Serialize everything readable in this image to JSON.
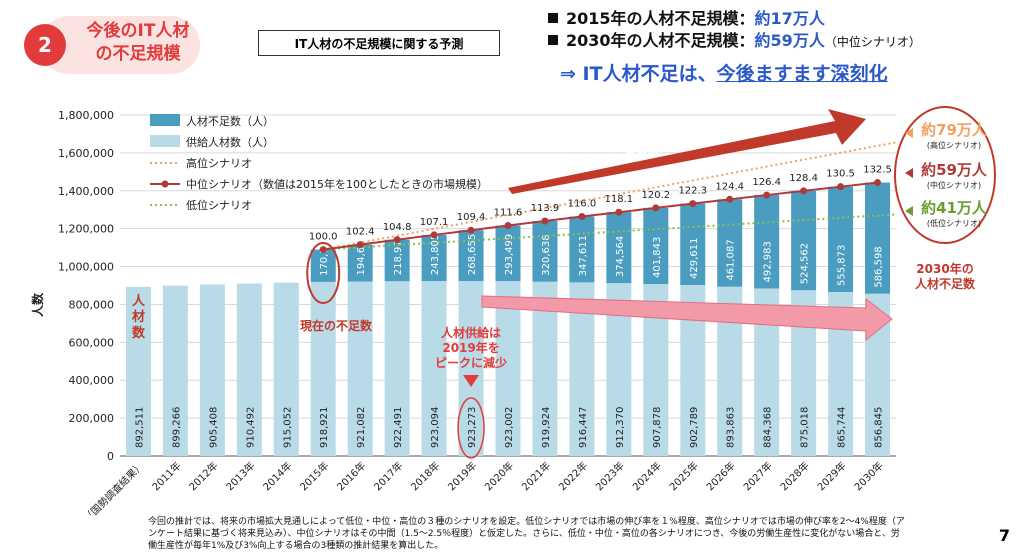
{
  "badge": {
    "number": "2",
    "title_line1": "今後のIT人材",
    "title_line2": "の不足規模"
  },
  "subtitle": "IT人材の不足規模に関する予測",
  "summary": {
    "line1_label": "2015年の人材不足規模：",
    "line1_value": "約17万人",
    "line2_label": "2030年の人材不足規模：",
    "line2_value": "約59万人",
    "line2_note": "（中位シナリオ）",
    "conclusion_prefix": "⇒ IT人材不足は、",
    "conclusion_underlined": "今後ますます深刻化"
  },
  "colors": {
    "shortage": "#4a9cc0",
    "supply": "#b9dbe8",
    "high": "#f0a060",
    "mid": "#b03a3a",
    "low": "#8cc04a",
    "annotation_red": "#c0392b",
    "accent_blue": "#2a59c9"
  },
  "chart_data": {
    "type": "bar",
    "categories": [
      "2010年（国勢調査結果）",
      "2011年",
      "2012年",
      "2013年",
      "2014年",
      "2015年",
      "2016年",
      "2017年",
      "2018年",
      "2019年",
      "2020年",
      "2021年",
      "2022年",
      "2023年",
      "2024年",
      "2025年",
      "2026年",
      "2027年",
      "2028年",
      "2029年",
      "2030年"
    ],
    "series": [
      {
        "name": "供給人材数（人）",
        "values": [
          892511,
          899266,
          905408,
          910492,
          915052,
          918921,
          921082,
          922491,
          923094,
          923273,
          923002,
          919924,
          916447,
          912370,
          907878,
          902789,
          893863,
          884368,
          875018,
          865744,
          856845
        ]
      },
      {
        "name": "人材不足数（人）",
        "values": [
          null,
          null,
          null,
          null,
          null,
          170700,
          194608,
          218976,
          243805,
          268655,
          293499,
          320638,
          347611,
          374564,
          401843,
          429611,
          461087,
          492983,
          524562,
          555873,
          586598
        ]
      }
    ],
    "lines": [
      {
        "name": "高位シナリオ",
        "style": "dotted",
        "start": [
          2015,
          1089621
        ],
        "end": [
          2030,
          1630000
        ]
      },
      {
        "name": "中位シナリオ（数値は2015年を100としたときの市場規模）",
        "style": "solid-markers",
        "index_labels": [
          "100.0",
          "102.4",
          "104.8",
          "107.1",
          "109.4",
          "111.6",
          "113.9",
          "116.0",
          "118.1",
          "120.2",
          "122.3",
          "124.4",
          "126.4",
          "128.4",
          "130.5",
          "132.5"
        ]
      },
      {
        "name": "低位シナリオ",
        "style": "dotted",
        "start": [
          2015,
          1089621
        ],
        "end": [
          2030,
          1270000
        ]
      }
    ],
    "ylabel": "人数",
    "ylim": [
      0,
      1800000
    ],
    "yticks": [
      "0",
      "200,000",
      "400,000",
      "600,000",
      "800,000",
      "1,000,000",
      "1,200,000",
      "1,400,000",
      "1,600,000",
      "1,800,000"
    ],
    "legend_position": "top-left"
  },
  "annotations": {
    "demand_arrow": "ITニーズの拡大により\n市場規模は今後も拡大",
    "current_shortage": "現在の不足数",
    "supply_peak": "人材供給は\n2019年を\nピークに減少",
    "shortage_2030": "2030年の\n人材不足数",
    "left_label": "人\n材\n数",
    "high_value": "約79万人",
    "high_sub": "(高位シナリオ)",
    "mid_value": "約59万人",
    "mid_sub": "(中位シナリオ)",
    "low_value": "約41万人",
    "low_sub": "(低位シナリオ)"
  },
  "footnote": "今回の推計では、将来の市場拡大見通しによって低位・中位・高位の３種のシナリオを設定。低位シナリオでは市場の伸び率を１%程度、高位シナリオでは市場の伸び率を2～4%程度（アンケート結果に基づく将来見込み）、中位シナリオはその中間（1.5～2.5％程度）と仮定した。さらに、低位・中位・高位の各シナリオにつき、今後の労働生産性に変化がない場合と、労働生産性が毎年1%及び3%向上する場合の3種類の推計結果を算出した。",
  "page_number": "7"
}
